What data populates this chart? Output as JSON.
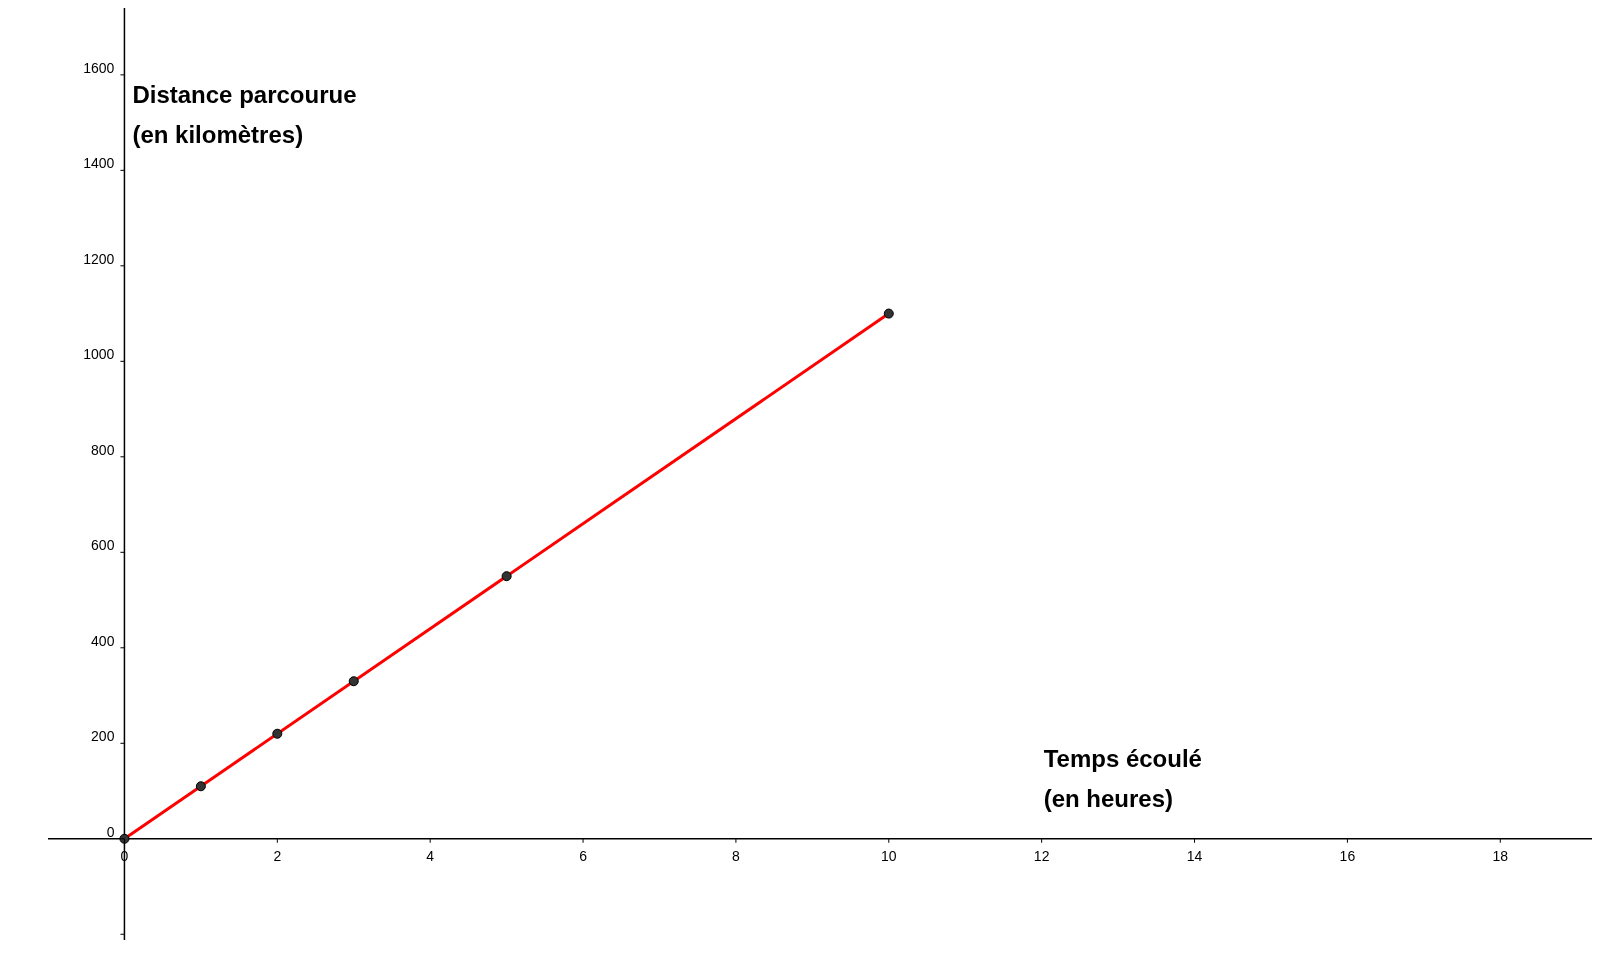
{
  "chart_data": {
    "type": "line",
    "xlabel": "Temps écoulé\n(en heures)",
    "ylabel": "Distance parcourue\n(en kilomètres)",
    "xlim": [
      -1,
      19.2
    ],
    "ylim": [
      -212,
      1740
    ],
    "xticks": [
      0,
      2,
      4,
      6,
      8,
      10,
      12,
      14,
      16,
      18
    ],
    "yticks": [
      {
        "value": -200,
        "label": null
      },
      0,
      200,
      400,
      600,
      800,
      1000,
      1200,
      1400,
      1600
    ],
    "grid": false,
    "series": [
      {
        "color": "#ff0000",
        "marker": "none",
        "x": [
          0,
          10
        ],
        "values": [
          0,
          1100
        ]
      },
      {
        "type": "scatter",
        "color": "#333333",
        "marker": "circle",
        "x": [
          0,
          1,
          2,
          3,
          5,
          10
        ],
        "values": [
          0,
          110,
          220,
          330,
          550,
          1100
        ]
      }
    ]
  }
}
